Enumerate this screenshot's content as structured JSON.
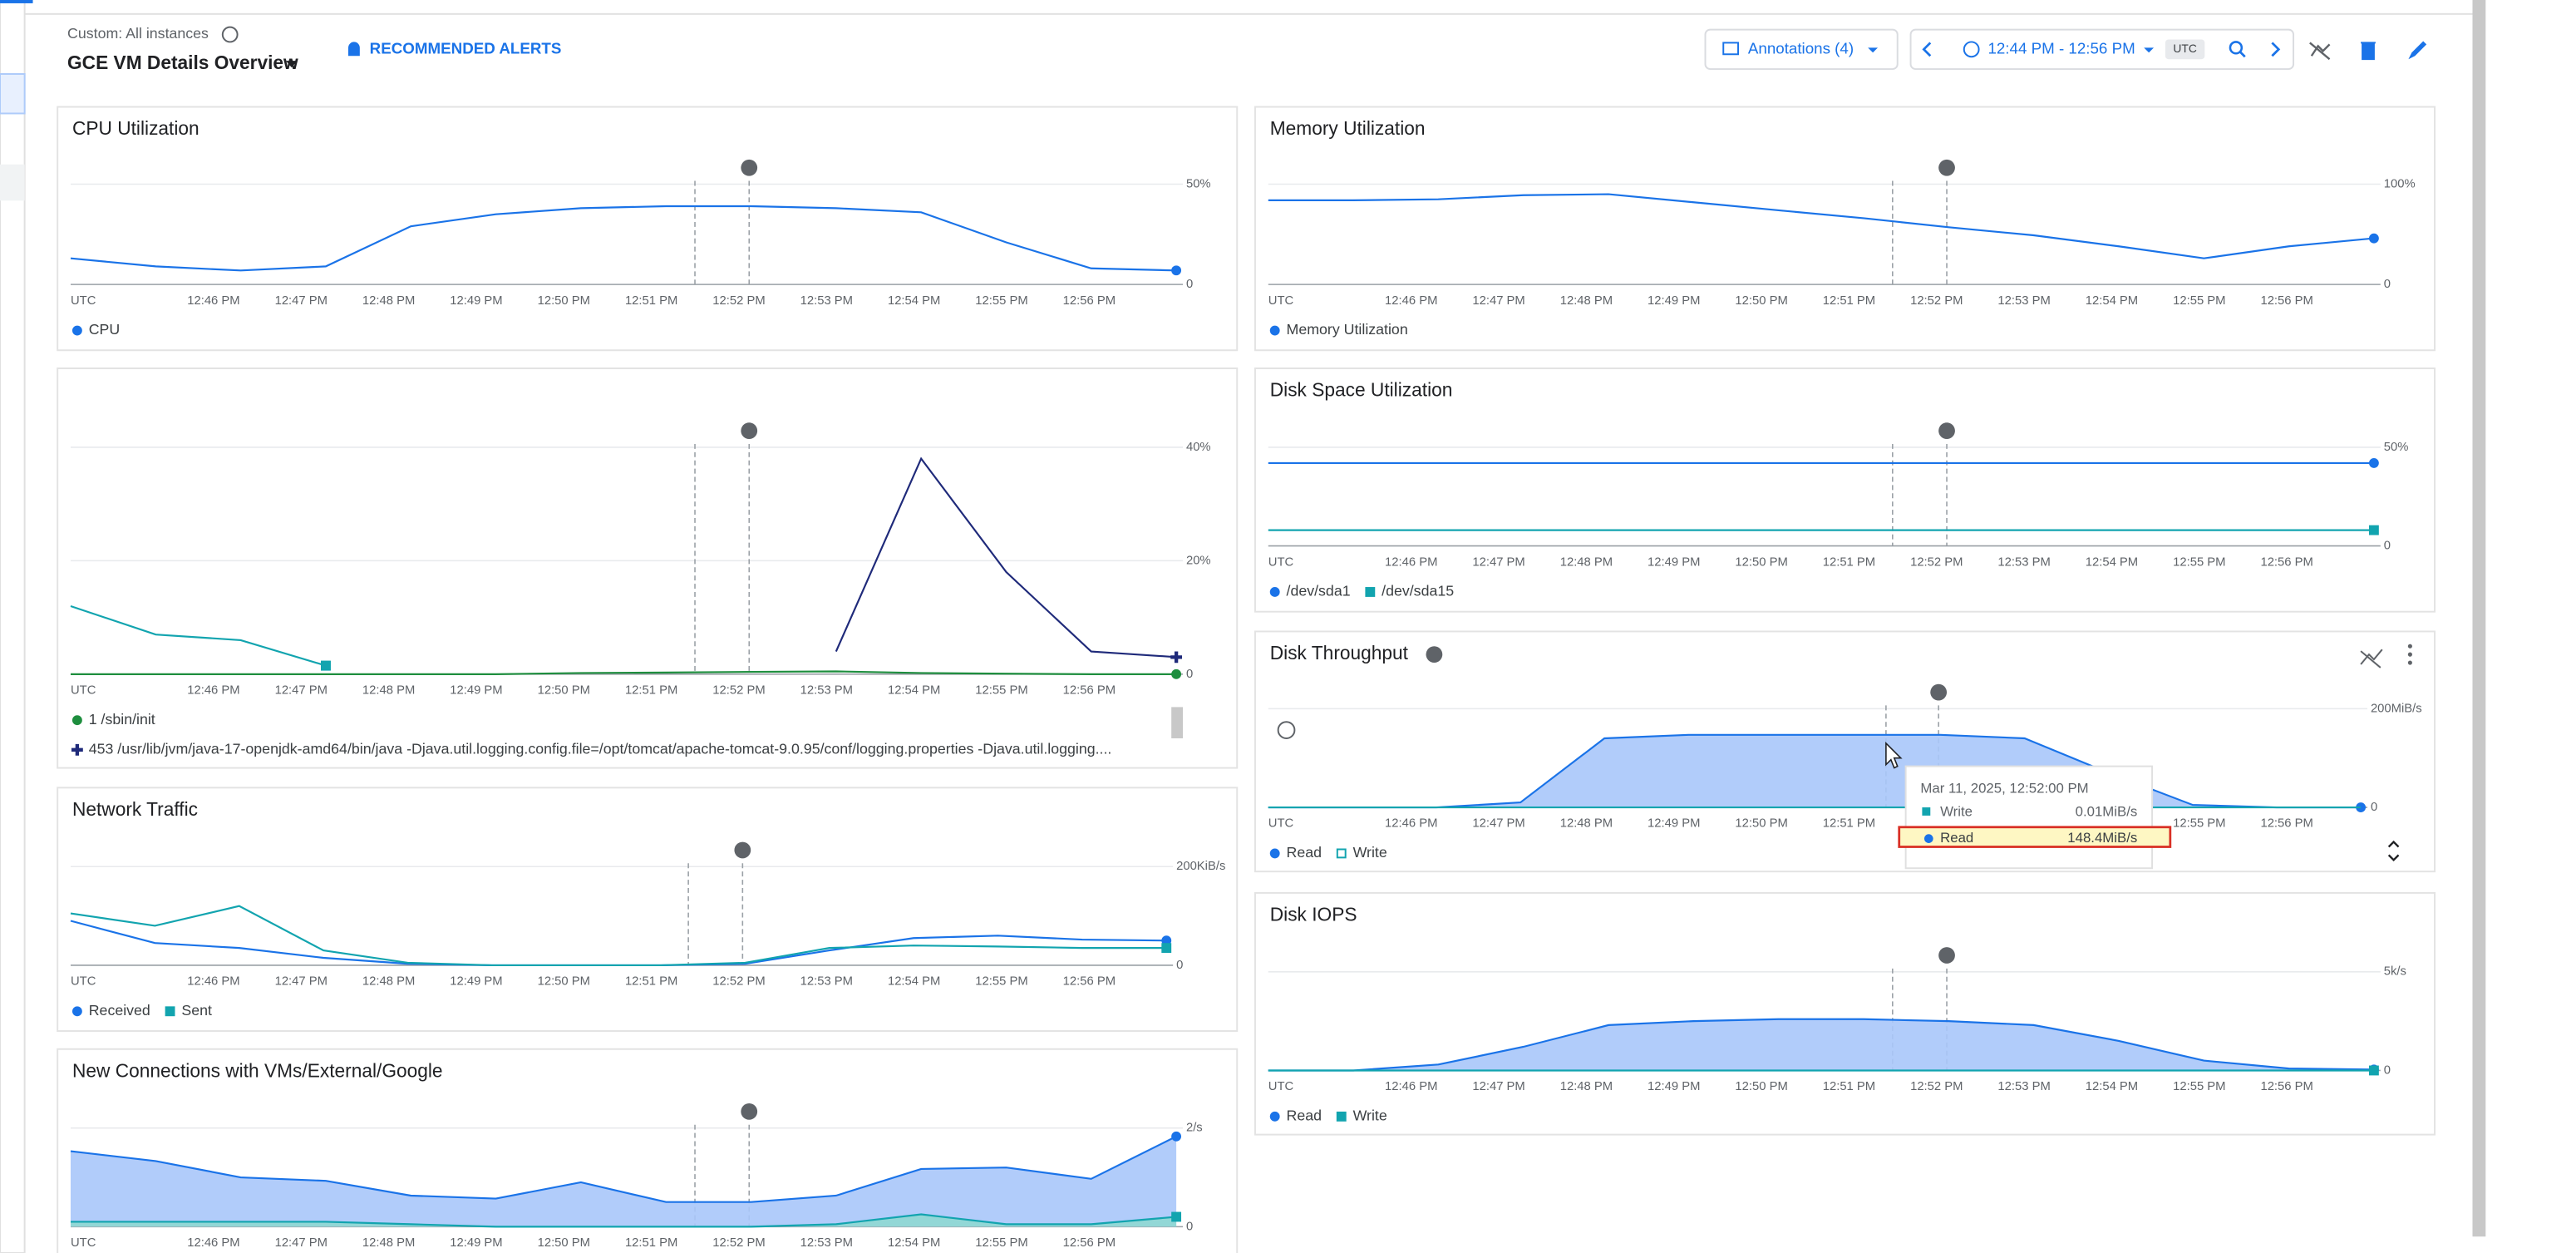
{
  "header": {
    "scope": "Custom: All instances",
    "title": "GCE VM Details Overview",
    "alerts": "RECOMMENDED ALERTS"
  },
  "toolbar": {
    "annotations": "Annotations (4)",
    "time_range": "12:44 PM - 12:56 PM",
    "timezone": "UTC"
  },
  "time_axis": [
    "UTC",
    "12:46 PM",
    "12:47 PM",
    "12:48 PM",
    "12:49 PM",
    "12:50 PM",
    "12:51 PM",
    "12:52 PM",
    "12:53 PM",
    "12:54 PM",
    "12:55 PM",
    "12:56 PM"
  ],
  "charts": [
    {
      "type": "line",
      "title": "CPU Utilization",
      "ylim": [
        0,
        50
      ],
      "yticks": [
        0,
        {
          "value": 50,
          "label": "50%"
        }
      ],
      "series": [
        {
          "name": "CPU",
          "color": "#1a73e8",
          "marker": "circle",
          "values": [
            13,
            9,
            7,
            9,
            29,
            35,
            38,
            39,
            39,
            38,
            36,
            21,
            8,
            7
          ]
        }
      ]
    },
    {
      "type": "line",
      "title": "Memory Utilization",
      "ylim": [
        0,
        100
      ],
      "yticks": [
        0,
        {
          "value": 100,
          "label": "100%"
        }
      ],
      "series": [
        {
          "name": "Memory Utilization",
          "color": "#1a73e8",
          "marker": "circle",
          "values": [
            84,
            84,
            85,
            89,
            90,
            82,
            74,
            66,
            57,
            49,
            38,
            26,
            38,
            46
          ]
        }
      ]
    },
    {
      "type": "line",
      "ylim": [
        0,
        40
      ],
      "yticks": [
        0,
        {
          "value": 20,
          "label": "20%"
        },
        {
          "value": 40,
          "label": "40%"
        }
      ],
      "series": [
        {
          "color": "#12a4af",
          "marker": "square",
          "values": [
            12,
            7,
            6,
            1.5,
            null,
            null,
            null,
            null,
            null,
            null,
            null,
            null,
            null,
            null
          ]
        },
        {
          "name": "1 /sbin/init",
          "color": "#1e8e3e",
          "marker": "circle",
          "values": [
            0,
            0,
            0,
            0,
            0,
            0,
            0.2,
            0.3,
            0.4,
            0.5,
            0.2,
            0.1,
            0,
            0
          ]
        },
        {
          "name": "453 /usr/lib/jvm/java-17-openjdk-amd64/bin/java -Djava.util.logging.config.file=/opt/tomcat/apache-tomcat-9.0.95/conf/logging.properties -Djava.util.logging....",
          "color": "#1f2a7a",
          "marker": "plus",
          "values": [
            null,
            null,
            null,
            null,
            null,
            null,
            null,
            null,
            null,
            4,
            38,
            18,
            4,
            3
          ]
        }
      ]
    },
    {
      "type": "line",
      "title": "Disk Space Utilization",
      "ylim": [
        0,
        50
      ],
      "yticks": [
        0,
        {
          "value": 50,
          "label": "50%"
        }
      ],
      "series": [
        {
          "name": "/dev/sda1",
          "color": "#1a73e8",
          "marker": "circle",
          "values": [
            42,
            42,
            42,
            42,
            42,
            42,
            42,
            42,
            42,
            42,
            42,
            42,
            42,
            42
          ]
        },
        {
          "name": "/dev/sda15",
          "color": "#12a4af",
          "marker": "square",
          "values": [
            8,
            8,
            8,
            8,
            8,
            8,
            8,
            8,
            8,
            8,
            8,
            8,
            8,
            8
          ]
        }
      ]
    },
    {
      "type": "line",
      "title": "Network Traffic",
      "ylim": [
        0,
        200
      ],
      "yticks": [
        0,
        {
          "value": 200,
          "label": "200KiB/s"
        }
      ],
      "series": [
        {
          "name": "Received",
          "color": "#1a73e8",
          "marker": "circle",
          "values": [
            90,
            45,
            35,
            15,
            3,
            0,
            0,
            0,
            3,
            30,
            55,
            60,
            52,
            50
          ]
        },
        {
          "name": "Sent",
          "color": "#12a4af",
          "marker": "square",
          "values": [
            105,
            80,
            120,
            30,
            5,
            0,
            0,
            0,
            5,
            35,
            40,
            38,
            35,
            35
          ]
        }
      ]
    },
    {
      "type": "area",
      "title": "Disk Throughput",
      "ylim": [
        0,
        200
      ],
      "yticks": [
        0,
        {
          "value": 200,
          "label": "200MiB/s"
        }
      ],
      "series": [
        {
          "name": "Read",
          "color": "#1a73e8",
          "fill": "#a8c7fa",
          "marker": "circle",
          "values": [
            0,
            0,
            0,
            10,
            140,
            147,
            147,
            147,
            147,
            140,
            70,
            5,
            0,
            0
          ]
        },
        {
          "name": "Write",
          "color": "#12a4af",
          "marker": "hollow",
          "values": [
            0,
            0,
            0,
            0,
            0,
            0,
            0,
            0,
            0,
            0,
            0,
            0,
            0,
            0
          ]
        }
      ]
    },
    {
      "type": "area",
      "title": "New Connections with VMs/External/Google",
      "ylim": [
        0,
        2
      ],
      "yticks": [
        0,
        {
          "value": 2,
          "label": "2/s"
        }
      ],
      "series": [
        {
          "color": "#1a73e8",
          "fill": "#a8c7fa",
          "marker": "circle",
          "values": [
            1.53,
            1.33,
            1,
            0.93,
            0.63,
            0.57,
            0.9,
            0.5,
            0.5,
            0.63,
            1.17,
            1.2,
            0.97,
            1.83
          ]
        },
        {
          "color": "#12a4af",
          "fill": "#8fd8d2",
          "marker": "square",
          "values": [
            0.1,
            0.1,
            0.1,
            0.1,
            0.05,
            0,
            0,
            0,
            0,
            0.05,
            0.25,
            0.05,
            0.05,
            0.2
          ]
        }
      ]
    },
    {
      "type": "area",
      "title": "Disk IOPS",
      "ylim": [
        0,
        5000
      ],
      "yticks": [
        0,
        {
          "value": 5000,
          "label": "5k/s"
        }
      ],
      "series": [
        {
          "name": "Read",
          "color": "#1a73e8",
          "fill": "#a8c7fa",
          "marker": "circle",
          "values": [
            0,
            0,
            300,
            1200,
            2300,
            2500,
            2600,
            2600,
            2500,
            2300,
            1500,
            500,
            100,
            50
          ]
        },
        {
          "name": "Write",
          "color": "#12a4af",
          "marker": "square",
          "values": [
            0,
            0,
            0,
            0,
            0,
            0,
            0,
            0,
            0,
            0,
            0,
            0,
            0,
            0
          ]
        }
      ]
    }
  ],
  "tooltip": {
    "time": "Mar 11, 2025, 12:52:00 PM",
    "rows": [
      {
        "name": "Write",
        "value": "0.01MiB/s"
      },
      {
        "name": "Read",
        "value": "148.4MiB/s"
      }
    ]
  }
}
